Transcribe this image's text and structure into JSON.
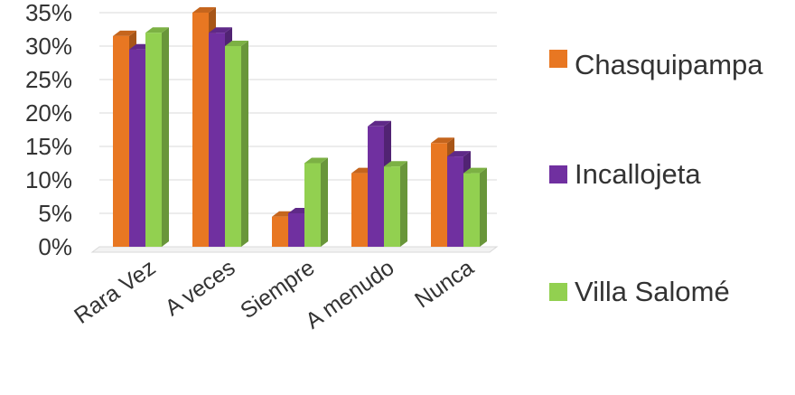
{
  "chart_data": {
    "type": "bar",
    "title": "",
    "xlabel": "",
    "ylabel": "",
    "ylim": [
      0,
      35
    ],
    "yticks": [
      "0%",
      "5%",
      "10%",
      "15%",
      "20%",
      "25%",
      "30%",
      "35%"
    ],
    "grid": true,
    "legend_position": "right",
    "categories": [
      "Rara Vez",
      "A veces",
      "Siempre",
      "A menudo",
      "Nunca"
    ],
    "series": [
      {
        "name": "Chasquipampa",
        "color": "#E87722",
        "values": [
          31.5,
          35,
          4.5,
          11,
          15.5
        ]
      },
      {
        "name": "Incallojeta",
        "color": "#7030A0",
        "values": [
          29.5,
          32,
          5,
          18,
          13.5
        ]
      },
      {
        "name": "Villa Salomé",
        "color": "#92D050",
        "values": [
          32,
          30,
          12.5,
          12,
          11
        ]
      }
    ]
  }
}
